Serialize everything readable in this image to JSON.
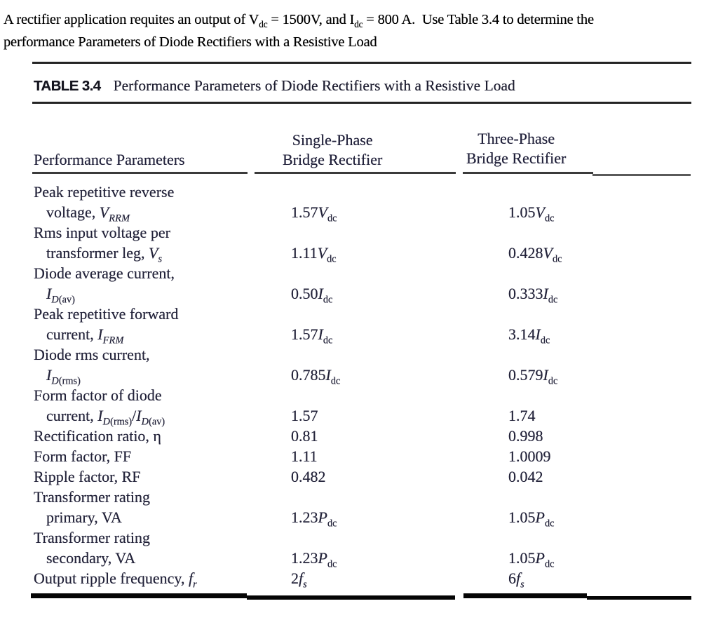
{
  "problem": {
    "line1": "A rectifier application requites an output of V~dc~ = 1500V, and I~dc~ = 800 A.  Use Table 3.4 to determine the",
    "line2": "performance Parameters of Diode Rectifiers with a Resistive Load"
  },
  "table": {
    "label": "TABLE 3.4",
    "title": "Performance Parameters of Diode Rectifiers with a Resistive Load",
    "columns": {
      "param": "Performance Parameters",
      "single": [
        "Single-Phase",
        "Bridge Rectifier"
      ],
      "three": [
        "Three-Phase",
        "Bridge Rectifier"
      ]
    },
    "rows": [
      {
        "label": [
          "Peak repetitive reverse",
          "voltage, *V~RRM~*"
        ],
        "single": "1.57*V*~dc~",
        "three": "1.05*V*~dc~"
      },
      {
        "label": [
          "Rms input voltage per",
          "transformer leg, *V~s~*"
        ],
        "single": "1.11*V*~dc~",
        "three": "0.428*V*~dc~"
      },
      {
        "label": [
          "Diode average current,",
          "*I~D~*~(av)~"
        ],
        "single": "0.50*I*~dc~",
        "three": "0.333*I*~dc~"
      },
      {
        "label": [
          "Peak repetitive forward",
          "current, *I~FRM~*"
        ],
        "single": "1.57*I*~dc~",
        "three": "3.14*I*~dc~"
      },
      {
        "label": [
          "Diode rms current,",
          "*I~D~*~(rms)~"
        ],
        "single": "0.785*I*~dc~",
        "three": "0.579*I*~dc~"
      },
      {
        "label": [
          "Form factor of diode",
          "current, *I~D~*~(rms)~/*I~D~*~(av)~"
        ],
        "single": "1.57",
        "three": "1.74"
      },
      {
        "label": [
          "Rectification ratio, η"
        ],
        "single": "0.81",
        "three": "0.998"
      },
      {
        "label": [
          "Form factor, FF"
        ],
        "single": "1.11",
        "three": "1.0009"
      },
      {
        "label": [
          "Ripple factor, RF"
        ],
        "single": "0.482",
        "three": "0.042"
      },
      {
        "label": [
          "Transformer rating",
          "primary, VA"
        ],
        "single": "1.23*P*~dc~",
        "three": "1.05*P*~dc~"
      },
      {
        "label": [
          "Transformer rating",
          "secondary, VA"
        ],
        "single": "1.23*P*~dc~",
        "three": "1.05*P*~dc~"
      },
      {
        "label": [
          "Output ripple frequency, *f~r~*"
        ],
        "single": "2*f~s~*",
        "three": "6*f~s~*"
      }
    ]
  },
  "colors": {
    "page_background": "#ffffff",
    "problem_ink": "#000000",
    "table_ink": "#23233a",
    "rule_ink": "#242424"
  }
}
